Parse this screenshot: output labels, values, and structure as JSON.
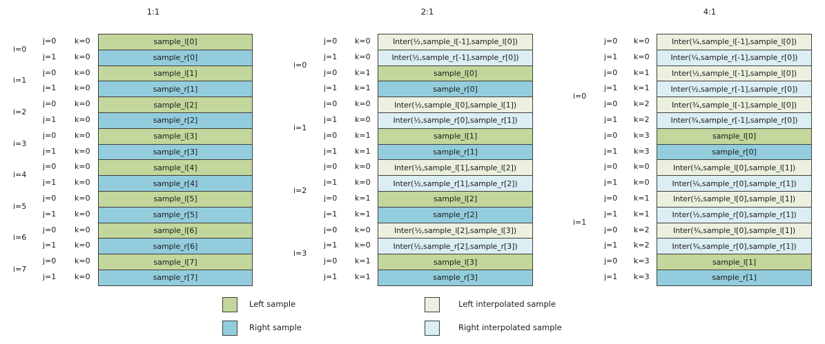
{
  "colors": {
    "left": "#c3d69b",
    "right": "#93cddd",
    "left_interp": "#ebf1de",
    "right_interp": "#dbeef4"
  },
  "panels": [
    {
      "title": "1:1",
      "groups": [
        {
          "i": "i=0",
          "rows": [
            {
              "j": "j=0",
              "k": "k=0",
              "text": "sample_l[0]",
              "type": "left"
            },
            {
              "j": "j=1",
              "k": "k=0",
              "text": "sample_r[0]",
              "type": "right"
            }
          ]
        },
        {
          "i": "i=1",
          "rows": [
            {
              "j": "j=0",
              "k": "k=0",
              "text": "sample_l[1]",
              "type": "left"
            },
            {
              "j": "j=1",
              "k": "k=0",
              "text": "sample_r[1]",
              "type": "right"
            }
          ]
        },
        {
          "i": "i=2",
          "rows": [
            {
              "j": "j=0",
              "k": "k=0",
              "text": "sample_l[2]",
              "type": "left"
            },
            {
              "j": "j=1",
              "k": "k=0",
              "text": "sample_r[2]",
              "type": "right"
            }
          ]
        },
        {
          "i": "i=3",
          "rows": [
            {
              "j": "j=0",
              "k": "k=0",
              "text": "sample_l[3]",
              "type": "left"
            },
            {
              "j": "j=1",
              "k": "k=0",
              "text": "sample_r[3]",
              "type": "right"
            }
          ]
        },
        {
          "i": "i=4",
          "rows": [
            {
              "j": "j=0",
              "k": "k=0",
              "text": "sample_l[4]",
              "type": "left"
            },
            {
              "j": "j=1",
              "k": "k=0",
              "text": "sample_r[4]",
              "type": "right"
            }
          ]
        },
        {
          "i": "i=5",
          "rows": [
            {
              "j": "j=0",
              "k": "k=0",
              "text": "sample_l[5]",
              "type": "left"
            },
            {
              "j": "j=1",
              "k": "k=0",
              "text": "sample_r[5]",
              "type": "right"
            }
          ]
        },
        {
          "i": "i=6",
          "rows": [
            {
              "j": "j=0",
              "k": "k=0",
              "text": "sample_l[6]",
              "type": "left"
            },
            {
              "j": "j=1",
              "k": "k=0",
              "text": "sample_r[6]",
              "type": "right"
            }
          ]
        },
        {
          "i": "i=7",
          "rows": [
            {
              "j": "j=0",
              "k": "k=0",
              "text": "sample_l[7]",
              "type": "left"
            },
            {
              "j": "j=1",
              "k": "k=0",
              "text": "sample_r[7]",
              "type": "right"
            }
          ]
        }
      ]
    },
    {
      "title": "2:1",
      "groups": [
        {
          "i": "i=0",
          "rows": [
            {
              "j": "j=0",
              "k": "k=0",
              "text": "Inter(½,sample_l[-1],sample_l[0])",
              "type": "left_interp"
            },
            {
              "j": "j=1",
              "k": "k=0",
              "text": "Inter(½,sample_r[-1],sample_r[0])",
              "type": "right_interp"
            },
            {
              "j": "j=0",
              "k": "k=1",
              "text": "sample_l[0]",
              "type": "left"
            },
            {
              "j": "j=1",
              "k": "k=1",
              "text": "sample_r[0]",
              "type": "right"
            }
          ]
        },
        {
          "i": "i=1",
          "rows": [
            {
              "j": "j=0",
              "k": "k=0",
              "text": "Inter(½,sample_l[0],sample_l[1])",
              "type": "left_interp"
            },
            {
              "j": "j=1",
              "k": "k=0",
              "text": "Inter(½,sample_r[0],sample_r[1])",
              "type": "right_interp"
            },
            {
              "j": "j=0",
              "k": "k=1",
              "text": "sample_l[1]",
              "type": "left"
            },
            {
              "j": "j=1",
              "k": "k=1",
              "text": "sample_r[1]",
              "type": "right"
            }
          ]
        },
        {
          "i": "i=2",
          "rows": [
            {
              "j": "j=0",
              "k": "k=0",
              "text": "Inter(½,sample_l[1],sample_l[2])",
              "type": "left_interp"
            },
            {
              "j": "j=1",
              "k": "k=0",
              "text": "Inter(½,sample_r[1],sample_r[2])",
              "type": "right_interp"
            },
            {
              "j": "j=0",
              "k": "k=1",
              "text": "sample_l[2]",
              "type": "left"
            },
            {
              "j": "j=1",
              "k": "k=1",
              "text": "sample_r[2]",
              "type": "right"
            }
          ]
        },
        {
          "i": "i=3",
          "rows": [
            {
              "j": "j=0",
              "k": "k=0",
              "text": "Inter(½,sample_l[2],sample_l[3])",
              "type": "left_interp"
            },
            {
              "j": "j=1",
              "k": "k=0",
              "text": "Inter(½,sample_r[2],sample_r[3])",
              "type": "right_interp"
            },
            {
              "j": "j=0",
              "k": "k=1",
              "text": "sample_l[3]",
              "type": "left"
            },
            {
              "j": "j=1",
              "k": "k=1",
              "text": "sample_r[3]",
              "type": "right"
            }
          ]
        }
      ]
    },
    {
      "title": "4:1",
      "groups": [
        {
          "i": "i=0",
          "rows": [
            {
              "j": "j=0",
              "k": "k=0",
              "text": "Inter(¼,sample_l[-1],sample_l[0])",
              "type": "left_interp"
            },
            {
              "j": "j=1",
              "k": "k=0",
              "text": "Inter(¼,sample_r[-1],sample_r[0])",
              "type": "right_interp"
            },
            {
              "j": "j=0",
              "k": "k=1",
              "text": "Inter(½,sample_l[-1],sample_l[0])",
              "type": "left_interp"
            },
            {
              "j": "j=1",
              "k": "k=1",
              "text": "Inter(½,sample_r[-1],sample_r[0])",
              "type": "right_interp"
            },
            {
              "j": "j=0",
              "k": "k=2",
              "text": "Inter(¾,sample_l[-1],sample_l[0])",
              "type": "left_interp"
            },
            {
              "j": "j=1",
              "k": "k=2",
              "text": "Inter(¾,sample_r[-1],sample_r[0])",
              "type": "right_interp"
            },
            {
              "j": "j=0",
              "k": "k=3",
              "text": "sample_l[0]",
              "type": "left"
            },
            {
              "j": "j=1",
              "k": "k=3",
              "text": "sample_r[0]",
              "type": "right"
            }
          ]
        },
        {
          "i": "i=1",
          "rows": [
            {
              "j": "j=0",
              "k": "k=0",
              "text": "Inter(¼,sample_l[0],sample_l[1])",
              "type": "left_interp"
            },
            {
              "j": "j=1",
              "k": "k=0",
              "text": "Inter(¼,sample_r[0],sample_r[1])",
              "type": "right_interp"
            },
            {
              "j": "j=0",
              "k": "k=1",
              "text": "Inter(½,sample_l[0],sample_l[1])",
              "type": "left_interp"
            },
            {
              "j": "j=1",
              "k": "k=1",
              "text": "Inter(½,sample_r[0],sample_r[1])",
              "type": "right_interp"
            },
            {
              "j": "j=0",
              "k": "k=2",
              "text": "Inter(¾,sample_l[0],sample_l[1])",
              "type": "left_interp"
            },
            {
              "j": "j=1",
              "k": "k=2",
              "text": "Inter(¾,sample_r[0],sample_r[1])",
              "type": "right_interp"
            },
            {
              "j": "j=0",
              "k": "k=3",
              "text": "sample_l[1]",
              "type": "left"
            },
            {
              "j": "j=1",
              "k": "k=3",
              "text": "sample_r[1]",
              "type": "right"
            }
          ]
        }
      ]
    }
  ],
  "legend": [
    {
      "label": "Left sample",
      "type": "left"
    },
    {
      "label": "Right sample",
      "type": "right"
    },
    {
      "label": "Left interpolated sample",
      "type": "left_interp"
    },
    {
      "label": "Right interpolated sample",
      "type": "right_interp"
    }
  ]
}
